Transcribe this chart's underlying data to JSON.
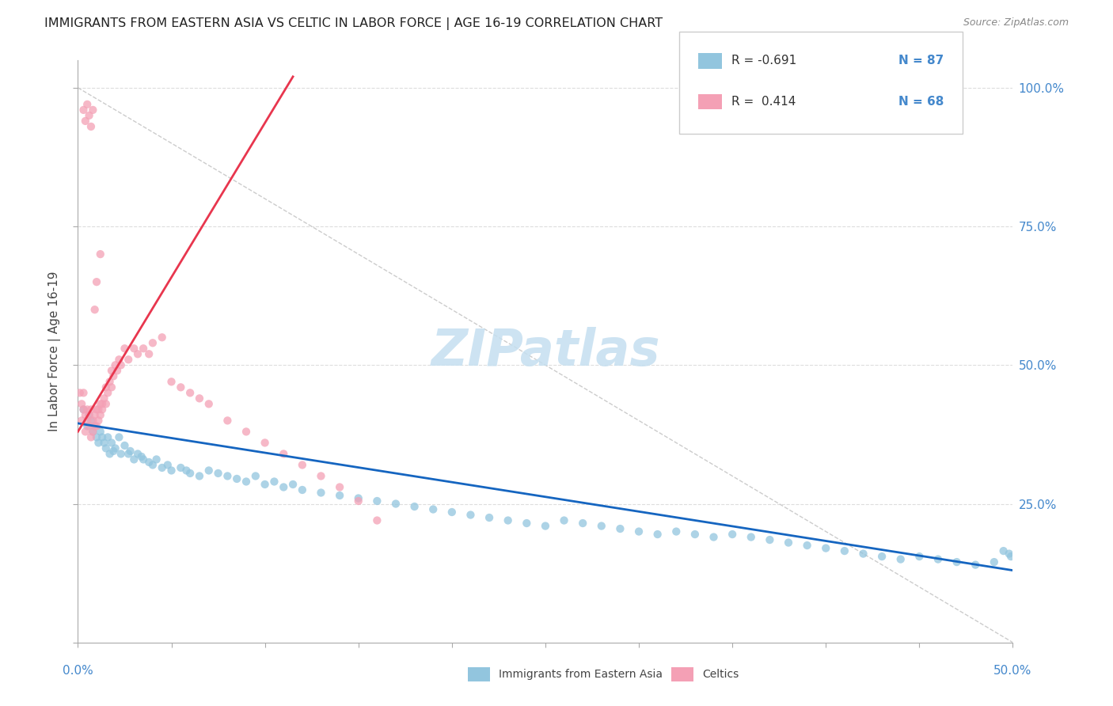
{
  "title": "IMMIGRANTS FROM EASTERN ASIA VS CELTIC IN LABOR FORCE | AGE 16-19 CORRELATION CHART",
  "source": "Source: ZipAtlas.com",
  "ylabel": "In Labor Force | Age 16-19",
  "xlim": [
    0.0,
    0.5
  ],
  "ylim": [
    0.0,
    1.05
  ],
  "legend_r_blue": "-0.691",
  "legend_n_blue": "87",
  "legend_r_pink": "0.414",
  "legend_n_pink": "68",
  "color_blue": "#92c5de",
  "color_pink": "#f4a0b5",
  "color_blue_line": "#1565c0",
  "color_pink_line": "#e8364e",
  "watermark_color": "#c5dff0",
  "blue_x": [
    0.003,
    0.005,
    0.006,
    0.007,
    0.008,
    0.009,
    0.01,
    0.011,
    0.012,
    0.013,
    0.014,
    0.015,
    0.016,
    0.017,
    0.018,
    0.019,
    0.02,
    0.022,
    0.023,
    0.025,
    0.027,
    0.028,
    0.03,
    0.032,
    0.034,
    0.035,
    0.038,
    0.04,
    0.042,
    0.045,
    0.048,
    0.05,
    0.055,
    0.058,
    0.06,
    0.065,
    0.07,
    0.075,
    0.08,
    0.085,
    0.09,
    0.095,
    0.1,
    0.105,
    0.11,
    0.115,
    0.12,
    0.13,
    0.14,
    0.15,
    0.16,
    0.17,
    0.18,
    0.19,
    0.2,
    0.21,
    0.22,
    0.23,
    0.24,
    0.25,
    0.26,
    0.27,
    0.28,
    0.29,
    0.3,
    0.31,
    0.32,
    0.33,
    0.34,
    0.35,
    0.36,
    0.37,
    0.38,
    0.39,
    0.4,
    0.41,
    0.42,
    0.43,
    0.44,
    0.45,
    0.46,
    0.47,
    0.48,
    0.49,
    0.495,
    0.498,
    0.499
  ],
  "blue_y": [
    0.42,
    0.39,
    0.41,
    0.4,
    0.38,
    0.39,
    0.37,
    0.36,
    0.38,
    0.37,
    0.36,
    0.35,
    0.37,
    0.34,
    0.36,
    0.345,
    0.35,
    0.37,
    0.34,
    0.355,
    0.34,
    0.345,
    0.33,
    0.34,
    0.335,
    0.33,
    0.325,
    0.32,
    0.33,
    0.315,
    0.32,
    0.31,
    0.315,
    0.31,
    0.305,
    0.3,
    0.31,
    0.305,
    0.3,
    0.295,
    0.29,
    0.3,
    0.285,
    0.29,
    0.28,
    0.285,
    0.275,
    0.27,
    0.265,
    0.26,
    0.255,
    0.25,
    0.245,
    0.24,
    0.235,
    0.23,
    0.225,
    0.22,
    0.215,
    0.21,
    0.22,
    0.215,
    0.21,
    0.205,
    0.2,
    0.195,
    0.2,
    0.195,
    0.19,
    0.195,
    0.19,
    0.185,
    0.18,
    0.175,
    0.17,
    0.165,
    0.16,
    0.155,
    0.15,
    0.155,
    0.15,
    0.145,
    0.14,
    0.145,
    0.165,
    0.16,
    0.155
  ],
  "pink_x": [
    0.001,
    0.002,
    0.002,
    0.003,
    0.003,
    0.004,
    0.004,
    0.005,
    0.005,
    0.006,
    0.006,
    0.007,
    0.007,
    0.008,
    0.008,
    0.009,
    0.009,
    0.01,
    0.01,
    0.011,
    0.011,
    0.012,
    0.012,
    0.013,
    0.013,
    0.014,
    0.015,
    0.015,
    0.016,
    0.017,
    0.018,
    0.018,
    0.019,
    0.02,
    0.021,
    0.022,
    0.023,
    0.025,
    0.027,
    0.03,
    0.032,
    0.035,
    0.038,
    0.04,
    0.045,
    0.05,
    0.055,
    0.06,
    0.065,
    0.07,
    0.08,
    0.09,
    0.1,
    0.11,
    0.12,
    0.13,
    0.14,
    0.15,
    0.16,
    0.003,
    0.004,
    0.005,
    0.006,
    0.007,
    0.008,
    0.009,
    0.01,
    0.012
  ],
  "pink_y": [
    0.45,
    0.4,
    0.43,
    0.42,
    0.45,
    0.38,
    0.41,
    0.4,
    0.42,
    0.39,
    0.41,
    0.37,
    0.42,
    0.38,
    0.4,
    0.39,
    0.41,
    0.39,
    0.42,
    0.4,
    0.42,
    0.41,
    0.43,
    0.42,
    0.43,
    0.44,
    0.43,
    0.46,
    0.45,
    0.47,
    0.46,
    0.49,
    0.48,
    0.5,
    0.49,
    0.51,
    0.5,
    0.53,
    0.51,
    0.53,
    0.52,
    0.53,
    0.52,
    0.54,
    0.55,
    0.47,
    0.46,
    0.45,
    0.44,
    0.43,
    0.4,
    0.38,
    0.36,
    0.34,
    0.32,
    0.3,
    0.28,
    0.255,
    0.22,
    0.96,
    0.94,
    0.97,
    0.95,
    0.93,
    0.96,
    0.6,
    0.65,
    0.7
  ],
  "pink_line_x0": 0.0,
  "pink_line_y0": 0.38,
  "pink_line_x1": 0.115,
  "pink_line_y1": 1.02,
  "blue_line_x0": 0.0,
  "blue_line_y0": 0.395,
  "blue_line_x1": 0.5,
  "blue_line_y1": 0.13
}
